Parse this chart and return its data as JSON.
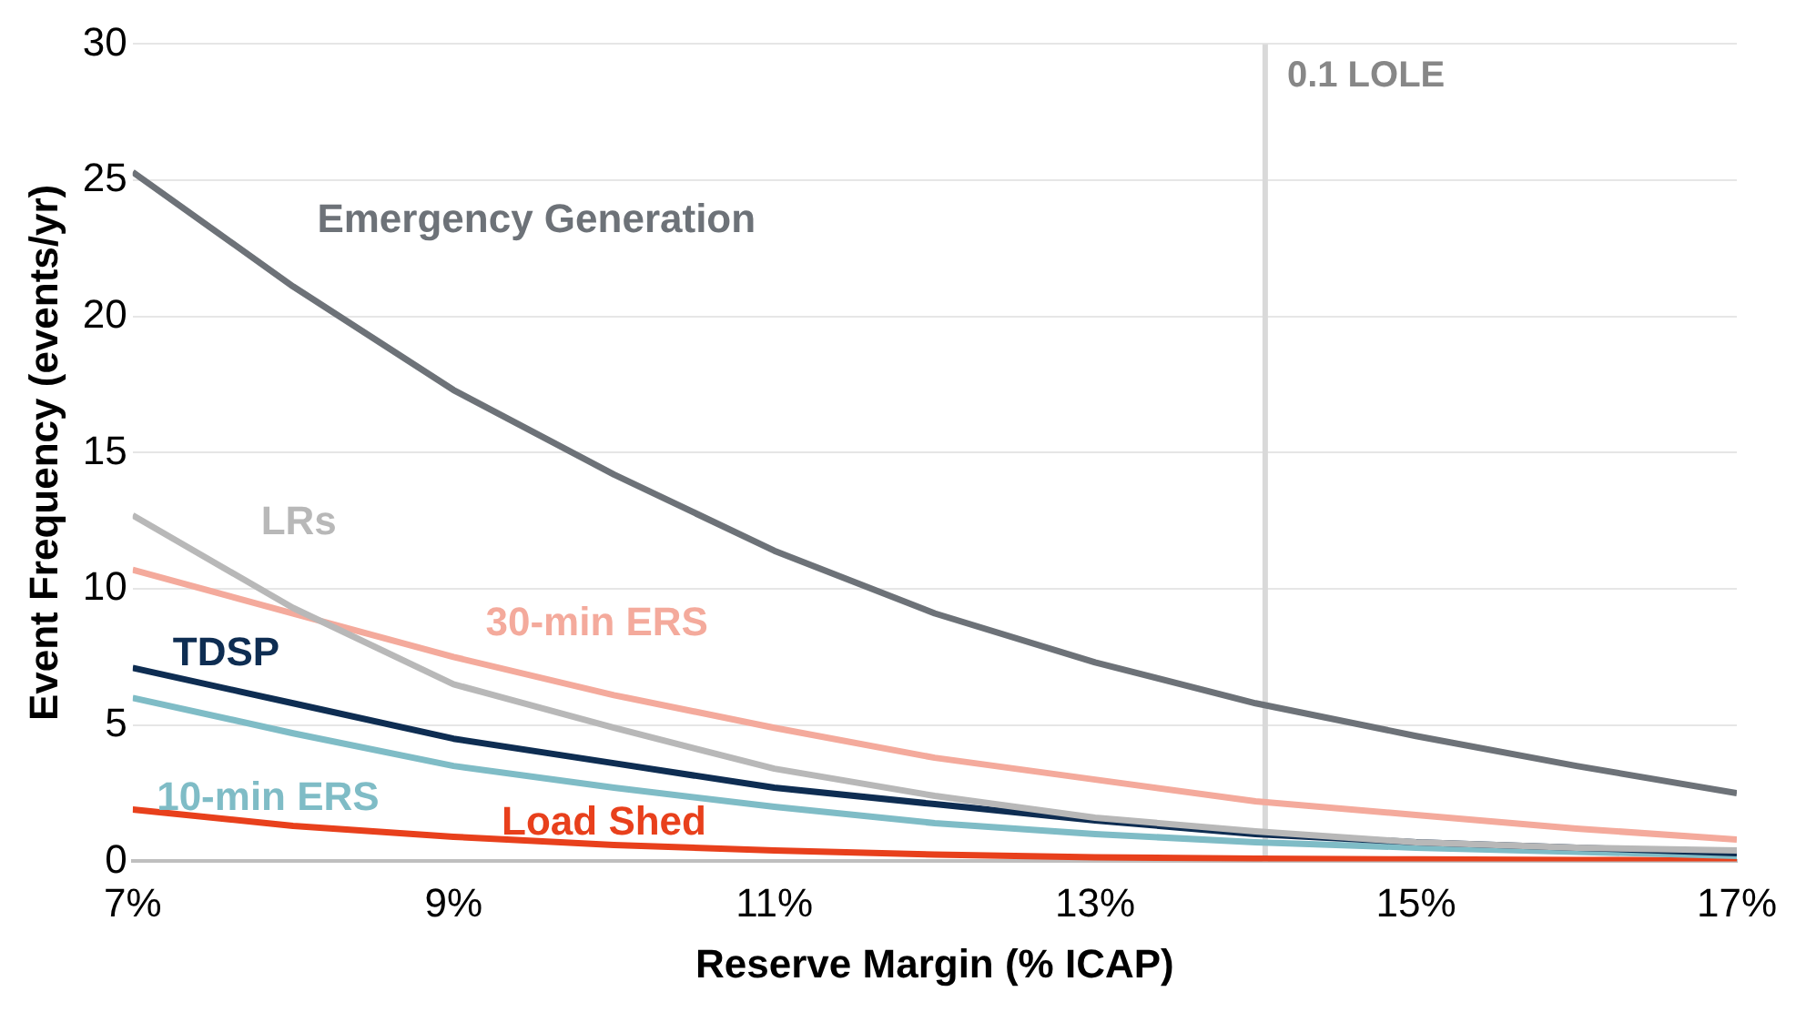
{
  "chart_data": {
    "type": "line",
    "xlabel": "Reserve Margin (% ICAP)",
    "ylabel": "Event Frequency (events/yr)",
    "x": [
      7,
      8,
      9,
      10,
      11,
      12,
      13,
      14,
      15,
      16,
      17
    ],
    "xlim": [
      7,
      17
    ],
    "xticks": [
      {
        "value": 7,
        "label": "7%"
      },
      {
        "value": 9,
        "label": "9%"
      },
      {
        "value": 11,
        "label": "11%"
      },
      {
        "value": 13,
        "label": "13%"
      },
      {
        "value": 15,
        "label": "15%"
      },
      {
        "value": 17,
        "label": "17%"
      }
    ],
    "ylim": [
      0,
      30
    ],
    "yticks": [
      0,
      5,
      10,
      15,
      20,
      25,
      30
    ],
    "grid": "y",
    "legend": false,
    "marker": "none",
    "line_style": "solid",
    "series": [
      {
        "name": "Emergency Generation",
        "color": "#6d7278",
        "values": [
          25.3,
          21.1,
          17.3,
          14.2,
          11.4,
          9.1,
          7.3,
          5.8,
          4.6,
          3.5,
          2.5
        ]
      },
      {
        "name": "LRs",
        "color": "#b8b8b8",
        "values": [
          12.7,
          9.3,
          6.5,
          4.9,
          3.4,
          2.4,
          1.6,
          1.1,
          0.7,
          0.5,
          0.4
        ]
      },
      {
        "name": "30-min ERS",
        "color": "#f4aa9c",
        "values": [
          10.7,
          9.1,
          7.5,
          6.1,
          4.9,
          3.8,
          3.0,
          2.2,
          1.7,
          1.2,
          0.8
        ]
      },
      {
        "name": "TDSP",
        "color": "#0e2d52",
        "values": [
          7.1,
          5.8,
          4.5,
          3.6,
          2.7,
          2.1,
          1.5,
          1.0,
          0.7,
          0.5,
          0.3
        ]
      },
      {
        "name": "10-min ERS",
        "color": "#7fbcc6",
        "values": [
          6.0,
          4.7,
          3.5,
          2.7,
          2.0,
          1.4,
          1.0,
          0.7,
          0.5,
          0.35,
          0.2
        ]
      },
      {
        "name": "Load Shed",
        "color": "#e8401c",
        "values": [
          1.9,
          1.3,
          0.9,
          0.6,
          0.4,
          0.25,
          0.15,
          0.1,
          0.07,
          0.05,
          0.03
        ]
      }
    ],
    "ref_lines": [
      {
        "axis": "x",
        "value": 14.06,
        "label": "0.1 LOLE",
        "color": "#d9d9d9"
      }
    ]
  }
}
